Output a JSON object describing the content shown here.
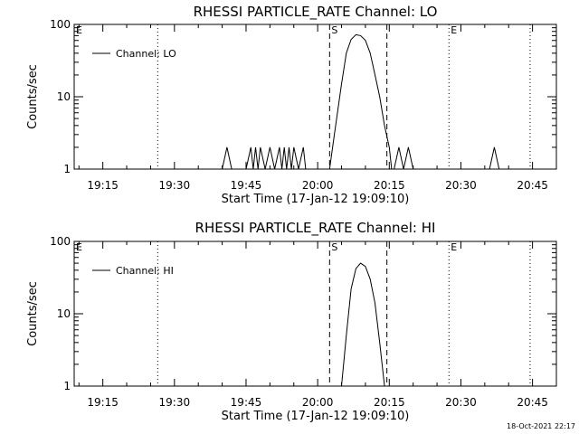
{
  "chart_data": [
    {
      "type": "line",
      "title": "RHESSI PARTICLE_RATE Channel: LO",
      "xlabel": "Start Time (17-Jan-12 19:09:10)",
      "ylabel": "Counts/sec",
      "yscale": "log",
      "ylim": [
        1,
        100
      ],
      "yticks": [
        "1",
        "10",
        "100"
      ],
      "xlim": [
        "19:09",
        "20:50"
      ],
      "xticks": [
        "19:15",
        "19:30",
        "19:45",
        "20:00",
        "20:15",
        "20:30",
        "20:45"
      ],
      "legend": "top-left",
      "series": [
        {
          "name": "Channel: LO",
          "x": [
            "19:09",
            "19:40",
            "19:41",
            "19:42",
            "19:45",
            "19:46",
            "19:46.5",
            "19:47",
            "19:47.5",
            "19:48",
            "19:49",
            "19:50",
            "19:51",
            "19:52",
            "19:52.5",
            "19:53",
            "19:53.5",
            "19:54",
            "19:54.5",
            "19:55",
            "19:56",
            "19:57",
            "19:57.5",
            "19:58",
            "20:02.5",
            "20:03.5",
            "20:05",
            "20:06",
            "20:07",
            "20:08",
            "20:09",
            "20:10",
            "20:11",
            "20:12",
            "20:13",
            "20:14",
            "20:15",
            "20:15.5",
            "20:16",
            "20:17",
            "20:18",
            "20:19",
            "20:20",
            "20:21",
            "20:36",
            "20:37",
            "20:38",
            "20:50"
          ],
          "y": [
            1,
            1,
            2,
            1,
            1,
            2,
            1,
            2,
            1,
            2,
            1,
            2,
            1,
            2,
            1,
            2,
            1,
            2,
            1,
            2,
            1,
            2,
            1,
            1,
            1,
            3,
            15,
            40,
            62,
            72,
            70,
            60,
            40,
            20,
            10,
            4,
            2,
            1,
            1,
            2,
            1,
            2,
            1,
            1,
            1,
            2,
            1,
            1
          ]
        }
      ],
      "annotations": [
        {
          "text": "E",
          "x": "19:09",
          "style": "none"
        },
        {
          "text": "",
          "x": "19:26.5",
          "style": "dotted"
        },
        {
          "text": "S",
          "x": "20:02.5",
          "style": "dashed"
        },
        {
          "text": "",
          "x": "20:14.5",
          "style": "dashed"
        },
        {
          "text": "E",
          "x": "20:27.5",
          "style": "dotted"
        },
        {
          "text": "",
          "x": "20:44.5",
          "style": "dotted"
        }
      ]
    },
    {
      "type": "line",
      "title": "RHESSI PARTICLE_RATE Channel: HI",
      "xlabel": "Start Time (17-Jan-12 19:09:10)",
      "ylabel": "Counts/sec",
      "yscale": "log",
      "ylim": [
        1,
        100
      ],
      "yticks": [
        "1",
        "10",
        "100"
      ],
      "xlim": [
        "19:09",
        "20:50"
      ],
      "xticks": [
        "19:15",
        "19:30",
        "19:45",
        "20:00",
        "20:15",
        "20:30",
        "20:45"
      ],
      "legend": "top-left",
      "series": [
        {
          "name": "Channel: HI",
          "x": [
            "20:05",
            "20:06",
            "20:07",
            "20:08",
            "20:09",
            "20:10",
            "20:11",
            "20:12",
            "20:13",
            "20:14"
          ],
          "y": [
            1,
            5,
            22,
            42,
            50,
            45,
            30,
            14,
            4,
            1
          ]
        }
      ],
      "annotations": [
        {
          "text": "E",
          "x": "19:09",
          "style": "none"
        },
        {
          "text": "",
          "x": "19:26.5",
          "style": "dotted"
        },
        {
          "text": "S",
          "x": "20:02.5",
          "style": "dashed"
        },
        {
          "text": "",
          "x": "20:14.5",
          "style": "dashed"
        },
        {
          "text": "E",
          "x": "20:27.5",
          "style": "dotted"
        },
        {
          "text": "",
          "x": "20:44.5",
          "style": "dotted"
        }
      ]
    }
  ],
  "footer": {
    "timestamp": "18-Oct-2021 22:17"
  }
}
